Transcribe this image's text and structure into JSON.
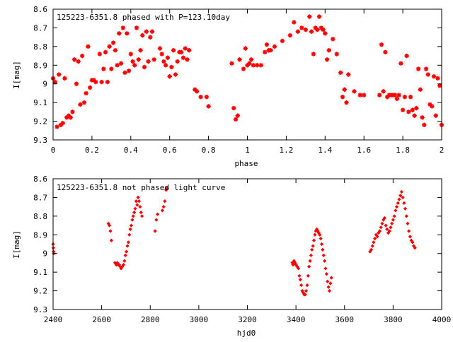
{
  "chart_data": [
    {
      "type": "scatter",
      "title": "125223-6351.8 phased with P=123.10day",
      "xlabel": "phase",
      "ylabel": "I[mag]",
      "xlim": [
        0,
        2
      ],
      "ylim": [
        9.3,
        8.6
      ],
      "y_inverted": true,
      "grid": false,
      "color": "#ff0000",
      "marker": "star",
      "xticks": [
        "0",
        "0.2",
        "0.4",
        "0.6",
        "0.8",
        "1",
        "1.2",
        "1.4",
        "1.6",
        "1.8",
        "2"
      ],
      "yticks": [
        "8.6",
        "8.7",
        "8.8",
        "8.9",
        "9",
        "9.1",
        "9.2",
        "9.3"
      ],
      "points": [
        [
          0.0,
          8.97
        ],
        [
          0.01,
          8.99
        ],
        [
          0.02,
          9.23
        ],
        [
          0.03,
          8.95
        ],
        [
          0.04,
          9.22
        ],
        [
          0.05,
          9.21
        ],
        [
          0.06,
          8.97
        ],
        [
          0.07,
          9.18
        ],
        [
          0.08,
          9.17
        ],
        [
          0.09,
          9.18
        ],
        [
          0.1,
          9.15
        ],
        [
          0.11,
          8.87
        ],
        [
          0.12,
          9.0
        ],
        [
          0.13,
          8.88
        ],
        [
          0.14,
          9.11
        ],
        [
          0.15,
          8.85
        ],
        [
          0.16,
          9.1
        ],
        [
          0.17,
          9.05
        ],
        [
          0.18,
          8.8
        ],
        [
          0.19,
          9.02
        ],
        [
          0.2,
          8.98
        ],
        [
          0.21,
          8.98
        ],
        [
          0.22,
          8.99
        ],
        [
          0.24,
          8.84
        ],
        [
          0.25,
          8.99
        ],
        [
          0.26,
          8.92
        ],
        [
          0.27,
          8.83
        ],
        [
          0.28,
          8.99
        ],
        [
          0.29,
          8.8
        ],
        [
          0.3,
          8.92
        ],
        [
          0.31,
          8.78
        ],
        [
          0.32,
          8.82
        ],
        [
          0.33,
          8.9
        ],
        [
          0.34,
          8.73
        ],
        [
          0.35,
          8.89
        ],
        [
          0.36,
          8.7
        ],
        [
          0.37,
          8.94
        ],
        [
          0.38,
          8.73
        ],
        [
          0.39,
          8.93
        ],
        [
          0.4,
          8.84
        ],
        [
          0.41,
          8.88
        ],
        [
          0.42,
          8.9
        ],
        [
          0.43,
          8.7
        ],
        [
          0.44,
          8.87
        ],
        [
          0.45,
          8.82
        ],
        [
          0.46,
          8.74
        ],
        [
          0.47,
          8.91
        ],
        [
          0.48,
          8.72
        ],
        [
          0.49,
          8.88
        ],
        [
          0.5,
          8.75
        ],
        [
          0.51,
          8.72
        ],
        [
          0.52,
          8.87
        ],
        [
          0.55,
          8.81
        ],
        [
          0.56,
          8.84
        ],
        [
          0.57,
          8.88
        ],
        [
          0.58,
          8.9
        ],
        [
          0.59,
          8.86
        ],
        [
          0.6,
          8.96
        ],
        [
          0.61,
          8.91
        ],
        [
          0.62,
          8.82
        ],
        [
          0.63,
          8.95
        ],
        [
          0.64,
          8.88
        ],
        [
          0.65,
          8.83
        ],
        [
          0.66,
          8.83
        ],
        [
          0.67,
          8.86
        ],
        [
          0.68,
          8.81
        ],
        [
          0.69,
          8.87
        ],
        [
          0.7,
          8.82
        ],
        [
          0.73,
          9.03
        ],
        [
          0.74,
          9.04
        ],
        [
          0.76,
          9.07
        ],
        [
          0.79,
          9.07
        ],
        [
          0.8,
          9.12
        ],
        [
          0.92,
          8.89
        ],
        [
          0.93,
          9.13
        ],
        [
          0.94,
          9.19
        ],
        [
          0.95,
          9.17
        ],
        [
          0.96,
          8.87
        ],
        [
          0.98,
          8.92
        ],
        [
          0.99,
          8.81
        ],
        [
          1.0,
          8.9
        ],
        [
          1.01,
          8.89
        ],
        [
          1.02,
          8.87
        ],
        [
          1.03,
          8.9
        ],
        [
          1.05,
          8.9
        ],
        [
          1.07,
          8.9
        ],
        [
          1.09,
          8.83
        ],
        [
          1.1,
          8.79
        ],
        [
          1.11,
          8.82
        ],
        [
          1.12,
          8.82
        ],
        [
          1.14,
          8.8
        ],
        [
          1.18,
          8.77
        ],
        [
          1.22,
          8.74
        ],
        [
          1.24,
          8.67
        ],
        [
          1.26,
          8.72
        ],
        [
          1.28,
          8.7
        ],
        [
          1.3,
          8.71
        ],
        [
          1.32,
          8.64
        ],
        [
          1.33,
          8.72
        ],
        [
          1.34,
          8.84
        ],
        [
          1.35,
          8.7
        ],
        [
          1.36,
          8.71
        ],
        [
          1.37,
          8.64
        ],
        [
          1.38,
          8.7
        ],
        [
          1.39,
          8.71
        ],
        [
          1.4,
          8.73
        ],
        [
          1.41,
          8.87
        ],
        [
          1.42,
          8.82
        ],
        [
          1.44,
          8.76
        ],
        [
          1.46,
          8.84
        ],
        [
          1.48,
          8.94
        ],
        [
          1.49,
          9.07
        ],
        [
          1.5,
          9.03
        ],
        [
          1.51,
          9.1
        ],
        [
          1.52,
          8.95
        ],
        [
          1.55,
          9.04
        ],
        [
          1.58,
          9.06
        ],
        [
          1.6,
          9.06
        ],
        [
          1.68,
          9.06
        ],
        [
          1.69,
          8.79
        ],
        [
          1.7,
          9.04
        ],
        [
          1.71,
          8.83
        ],
        [
          1.72,
          9.07
        ],
        [
          1.73,
          9.06
        ],
        [
          1.74,
          9.06
        ],
        [
          1.75,
          9.06
        ],
        [
          1.76,
          9.06
        ],
        [
          1.77,
          9.08
        ],
        [
          1.78,
          9.06
        ],
        [
          1.79,
          8.89
        ],
        [
          1.8,
          9.14
        ],
        [
          1.81,
          9.07
        ],
        [
          1.82,
          8.85
        ],
        [
          1.83,
          9.15
        ],
        [
          1.84,
          9.07
        ],
        [
          1.85,
          9.14
        ],
        [
          1.86,
          9.17
        ],
        [
          1.87,
          9.13
        ],
        [
          1.88,
          8.92
        ],
        [
          1.89,
          9.03
        ],
        [
          1.9,
          9.18
        ],
        [
          1.91,
          9.22
        ],
        [
          1.92,
          8.92
        ],
        [
          1.93,
          8.95
        ],
        [
          1.94,
          9.11
        ],
        [
          1.95,
          9.12
        ],
        [
          1.96,
          8.96
        ],
        [
          1.97,
          9.17
        ],
        [
          1.98,
          8.97
        ],
        [
          1.99,
          9.01
        ],
        [
          2.0,
          9.22
        ]
      ]
    },
    {
      "type": "scatter",
      "title": "125223-6351.8 not phased light curve",
      "xlabel": "hjd0",
      "ylabel": "I[mag]",
      "xlim": [
        2400,
        4000
      ],
      "ylim": [
        9.3,
        8.6
      ],
      "y_inverted": true,
      "grid": false,
      "color": "#ff0000",
      "marker": "diamond",
      "xticks": [
        "2400",
        "2600",
        "2800",
        "3000",
        "3200",
        "3400",
        "3600",
        "3800",
        "4000"
      ],
      "yticks": [
        "8.6",
        "8.7",
        "8.8",
        "8.9",
        "9",
        "9.1",
        "9.2",
        "9.3"
      ],
      "points": [
        [
          2400,
          8.95
        ],
        [
          2401,
          8.97
        ],
        [
          2402,
          8.99
        ],
        [
          2403,
          9.0
        ],
        [
          2628,
          8.84
        ],
        [
          2632,
          8.85
        ],
        [
          2636,
          8.88
        ],
        [
          2640,
          8.93
        ],
        [
          2655,
          9.05
        ],
        [
          2660,
          9.06
        ],
        [
          2664,
          9.05
        ],
        [
          2668,
          9.06
        ],
        [
          2672,
          9.06
        ],
        [
          2676,
          9.07
        ],
        [
          2680,
          9.08
        ],
        [
          2685,
          9.07
        ],
        [
          2690,
          9.06
        ],
        [
          2694,
          9.04
        ],
        [
          2698,
          9.01
        ],
        [
          2702,
          8.99
        ],
        [
          2706,
          8.96
        ],
        [
          2710,
          8.94
        ],
        [
          2714,
          8.9
        ],
        [
          2718,
          8.87
        ],
        [
          2722,
          8.85
        ],
        [
          2726,
          8.82
        ],
        [
          2730,
          8.8
        ],
        [
          2734,
          8.78
        ],
        [
          2738,
          8.76
        ],
        [
          2742,
          8.72
        ],
        [
          2746,
          8.74
        ],
        [
          2750,
          8.7
        ],
        [
          2754,
          8.72
        ],
        [
          2758,
          8.75
        ],
        [
          2762,
          8.78
        ],
        [
          2766,
          8.8
        ],
        [
          2820,
          8.88
        ],
        [
          2825,
          8.82
        ],
        [
          2830,
          8.79
        ],
        [
          2850,
          8.77
        ],
        [
          2855,
          8.75
        ],
        [
          2860,
          8.72
        ],
        [
          2865,
          8.66
        ],
        [
          2870,
          8.65
        ],
        [
          3385,
          9.05
        ],
        [
          3388,
          9.06
        ],
        [
          3392,
          9.04
        ],
        [
          3396,
          9.05
        ],
        [
          3400,
          9.06
        ],
        [
          3405,
          9.07
        ],
        [
          3410,
          9.08
        ],
        [
          3414,
          9.12
        ],
        [
          3418,
          9.14
        ],
        [
          3422,
          9.17
        ],
        [
          3426,
          9.2
        ],
        [
          3430,
          9.21
        ],
        [
          3434,
          9.22
        ],
        [
          3438,
          9.22
        ],
        [
          3442,
          9.2
        ],
        [
          3446,
          9.17
        ],
        [
          3450,
          9.12
        ],
        [
          3454,
          9.07
        ],
        [
          3458,
          9.04
        ],
        [
          3462,
          9.01
        ],
        [
          3466,
          8.98
        ],
        [
          3470,
          8.96
        ],
        [
          3474,
          8.93
        ],
        [
          3478,
          8.9
        ],
        [
          3482,
          8.88
        ],
        [
          3486,
          8.87
        ],
        [
          3490,
          8.88
        ],
        [
          3494,
          8.89
        ],
        [
          3498,
          8.9
        ],
        [
          3502,
          8.92
        ],
        [
          3506,
          8.95
        ],
        [
          3510,
          8.98
        ],
        [
          3514,
          9.01
        ],
        [
          3518,
          9.04
        ],
        [
          3522,
          9.08
        ],
        [
          3526,
          9.11
        ],
        [
          3530,
          9.15
        ],
        [
          3534,
          9.18
        ],
        [
          3538,
          9.2
        ],
        [
          3542,
          9.16
        ],
        [
          3546,
          9.13
        ],
        [
          3705,
          8.99
        ],
        [
          3710,
          8.98
        ],
        [
          3715,
          8.96
        ],
        [
          3720,
          8.94
        ],
        [
          3725,
          8.92
        ],
        [
          3730,
          8.9
        ],
        [
          3735,
          8.91
        ],
        [
          3740,
          8.89
        ],
        [
          3745,
          8.88
        ],
        [
          3750,
          8.86
        ],
        [
          3755,
          8.84
        ],
        [
          3760,
          8.82
        ],
        [
          3765,
          8.81
        ],
        [
          3770,
          8.85
        ],
        [
          3775,
          8.87
        ],
        [
          3780,
          8.89
        ],
        [
          3785,
          8.88
        ],
        [
          3790,
          8.86
        ],
        [
          3795,
          8.84
        ],
        [
          3800,
          8.82
        ],
        [
          3805,
          8.8
        ],
        [
          3810,
          8.77
        ],
        [
          3815,
          8.75
        ],
        [
          3820,
          8.73
        ],
        [
          3825,
          8.71
        ],
        [
          3830,
          8.69
        ],
        [
          3835,
          8.67
        ],
        [
          3840,
          8.7
        ],
        [
          3845,
          8.73
        ],
        [
          3850,
          8.76
        ],
        [
          3855,
          8.8
        ],
        [
          3860,
          8.84
        ],
        [
          3865,
          8.88
        ],
        [
          3870,
          8.91
        ],
        [
          3875,
          8.93
        ],
        [
          3880,
          8.94
        ],
        [
          3885,
          8.96
        ],
        [
          3890,
          8.97
        ]
      ]
    }
  ]
}
